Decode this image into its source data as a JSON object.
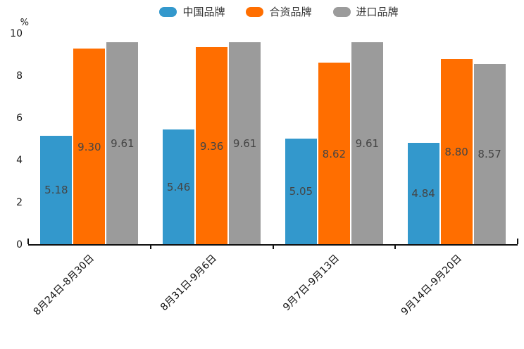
{
  "chart_data": {
    "type": "bar",
    "title": "",
    "ylabel": "%",
    "ylim": [
      0,
      10
    ],
    "yticks": [
      0,
      2,
      4,
      6,
      8,
      10
    ],
    "legend_position": "top",
    "grid": false,
    "value_label_decimals": 2,
    "categories": [
      "8月24日-8月30日",
      "8月31日-9月6日",
      "9月7日-9月13日",
      "9月14日-9月20日"
    ],
    "series": [
      {
        "name": "中国品牌",
        "color": "#3398cc",
        "values": [
          5.18,
          5.46,
          5.05,
          4.84
        ]
      },
      {
        "name": "合资品牌",
        "color": "#ff6e00",
        "values": [
          9.3,
          9.36,
          8.62,
          8.8
        ]
      },
      {
        "name": "进口品牌",
        "color": "#9b9b9b",
        "values": [
          9.61,
          9.61,
          9.61,
          8.57
        ]
      }
    ]
  },
  "colors": {
    "background": "#ffffff",
    "axis": "#111111",
    "tick_label": "#1a1a1a",
    "value_label": "#444444",
    "legend_label": "#333333"
  }
}
